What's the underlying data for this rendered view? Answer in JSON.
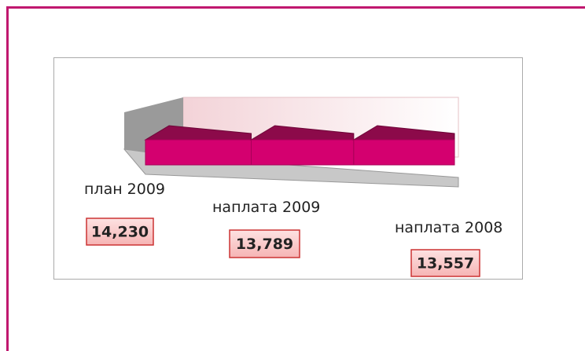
{
  "chart_data": {
    "type": "bar",
    "categories": [
      "план 2009",
      "наплата 2009",
      "наплата 2008"
    ],
    "values": [
      14230,
      13789,
      13557
    ],
    "value_labels": [
      "14,230",
      "13,789",
      "13,557"
    ],
    "color": "#d4006f"
  }
}
